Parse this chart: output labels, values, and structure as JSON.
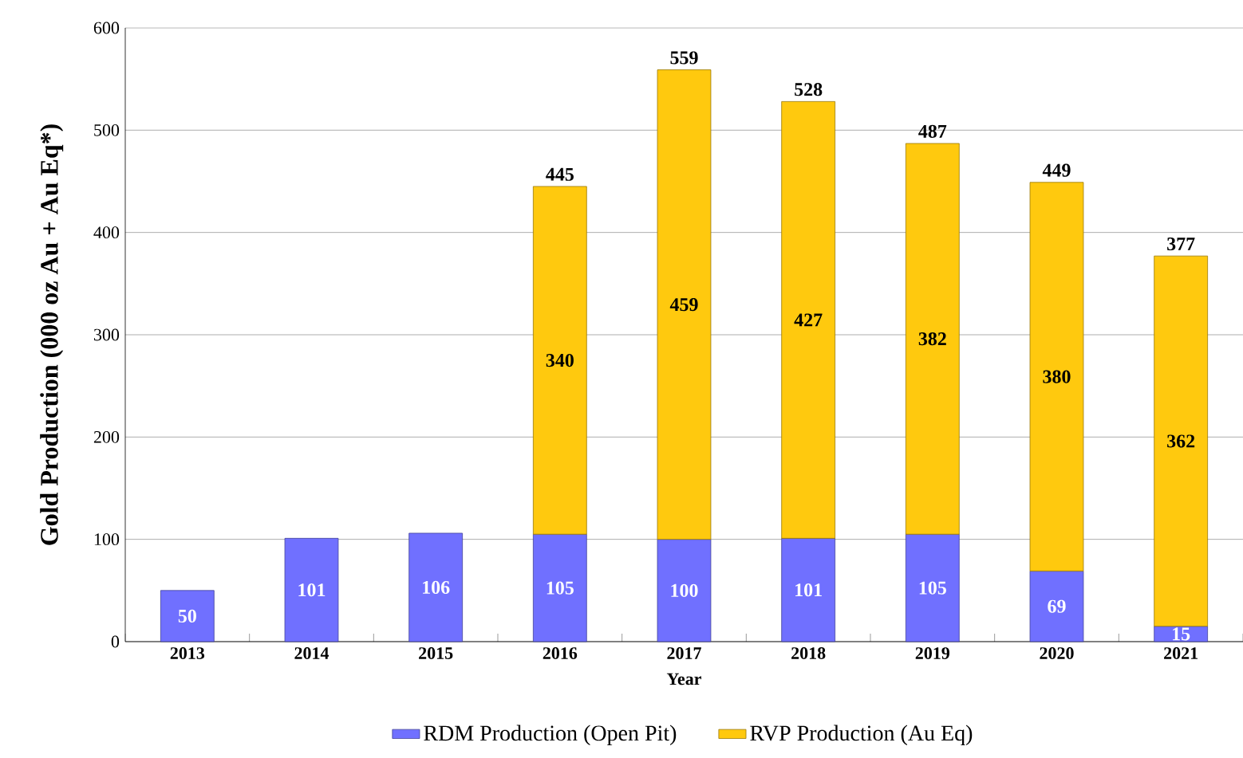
{
  "chart_data": {
    "type": "bar",
    "stacked": true,
    "xlabel": "Year",
    "ylabel": "Gold Production (000 oz Au + Au Eq*)",
    "categories": [
      "2013",
      "2014",
      "2015",
      "2016",
      "2017",
      "2018",
      "2019",
      "2020",
      "2021"
    ],
    "series": [
      {
        "name": "RDM Production (Open Pit)",
        "color": "#7070ff",
        "values": [
          50,
          101,
          106,
          105,
          100,
          101,
          105,
          69,
          15
        ]
      },
      {
        "name": "RVP Production (Au Eq)",
        "color": "#ffc90e",
        "values": [
          null,
          null,
          null,
          340,
          459,
          427,
          382,
          380,
          362
        ]
      }
    ],
    "totals": [
      null,
      null,
      null,
      "445",
      "559",
      "528",
      "487",
      "449",
      "377"
    ],
    "data_labels": true,
    "ylim": [
      0,
      600
    ],
    "yticks": [
      0,
      100,
      200,
      300,
      400,
      500,
      600
    ],
    "grid": "y",
    "legend": "bottom"
  }
}
